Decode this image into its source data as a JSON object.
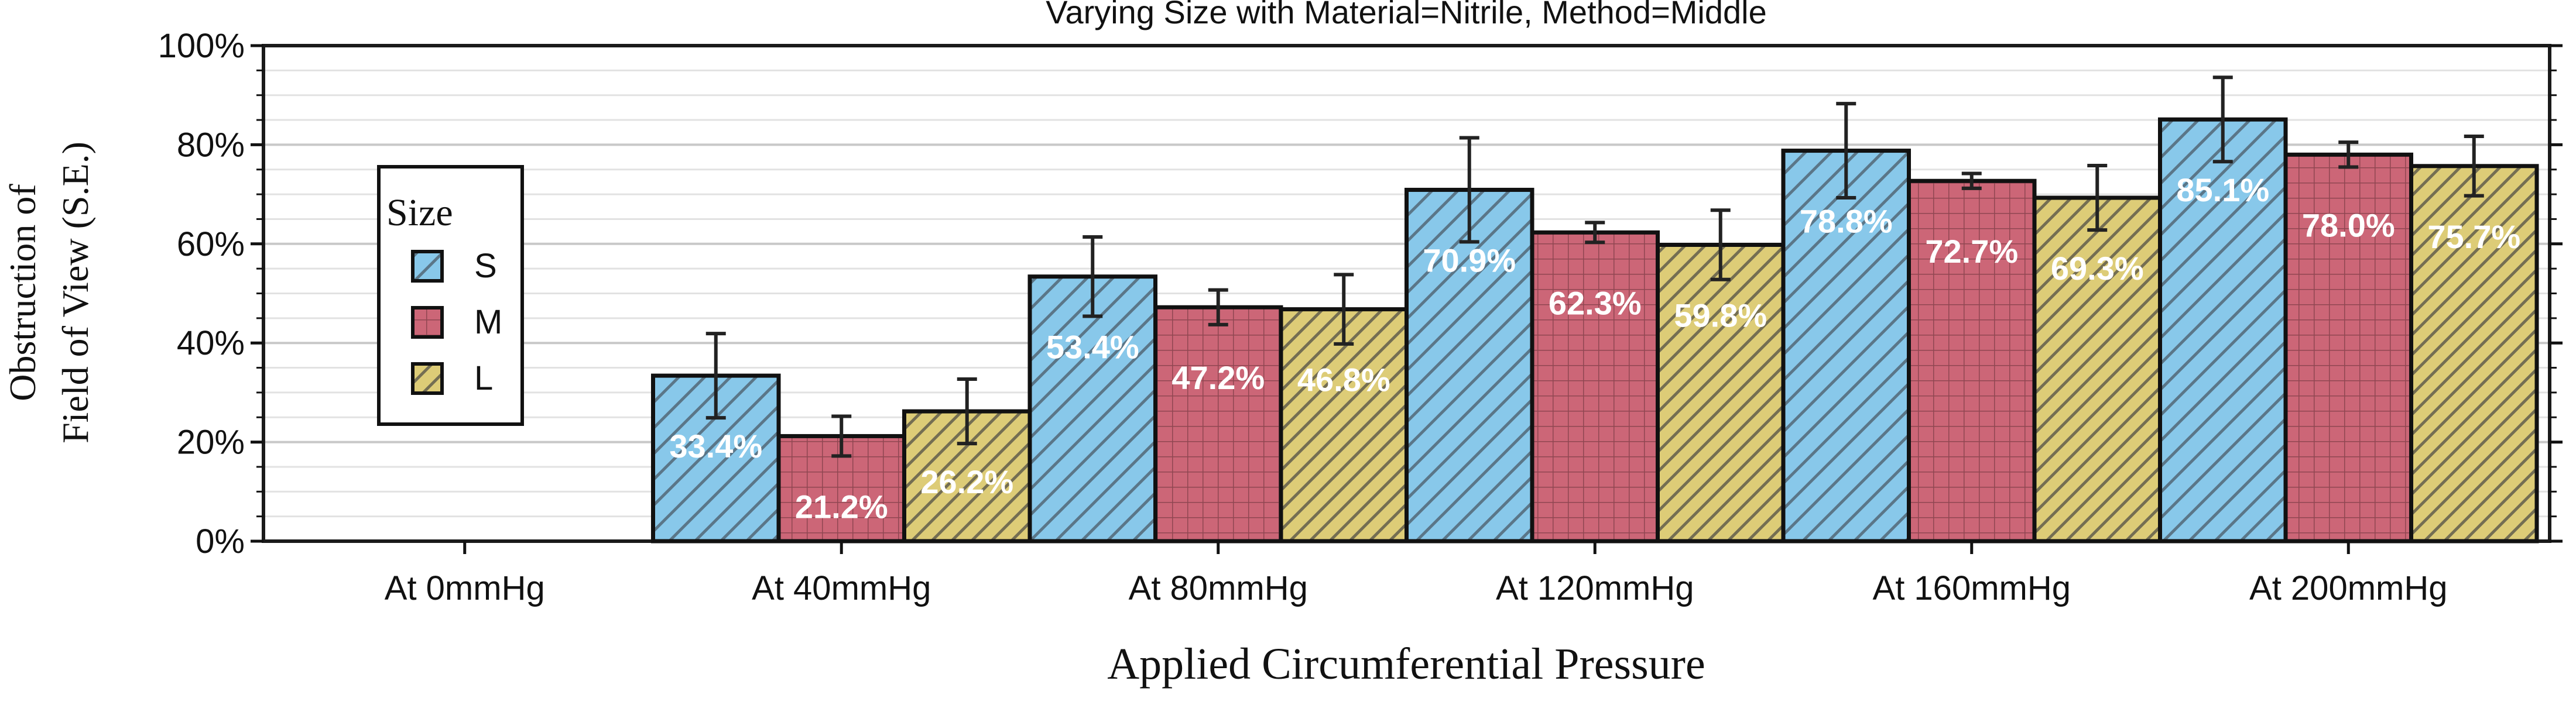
{
  "chart_data": {
    "type": "bar",
    "title": "Varying Size with Material=Nitrile, Method=Middle",
    "xlabel": "Applied Circumferential Pressure",
    "ylabel_lines": [
      "Obstruction of",
      "Field of View (S.E.)"
    ],
    "categories": [
      "At 0mmHg",
      "At 40mmHg",
      "At 80mmHg",
      "At 120mmHg",
      "At 160mmHg",
      "At 200mmHg"
    ],
    "ylim": [
      0,
      100
    ],
    "y_ticks": [
      "0%",
      "20%",
      "40%",
      "60%",
      "80%",
      "100%"
    ],
    "grid": true,
    "legend": {
      "title": "Size",
      "position": "left"
    },
    "series": [
      {
        "name": "S",
        "color": "#88c8ea",
        "hatch": "diagonal",
        "values": [
          0,
          33.4,
          53.4,
          70.9,
          78.8,
          85.1
        ],
        "errors": [
          0,
          8.5,
          8.0,
          10.5,
          9.5,
          8.5
        ],
        "labels": [
          "",
          "33.4%",
          "53.4%",
          "70.9%",
          "78.8%",
          "85.1%"
        ]
      },
      {
        "name": "M",
        "color": "#cc6677",
        "hatch": "grid",
        "values": [
          0,
          21.2,
          47.2,
          62.3,
          72.7,
          78.0
        ],
        "errors": [
          0,
          4.0,
          3.5,
          2.0,
          1.5,
          2.5
        ],
        "labels": [
          "",
          "21.2%",
          "47.2%",
          "62.3%",
          "72.7%",
          "78.0%"
        ]
      },
      {
        "name": "L",
        "color": "#ddcc77",
        "hatch": "diagonal-dense",
        "values": [
          0,
          26.2,
          46.8,
          59.8,
          69.3,
          75.7
        ],
        "errors": [
          0,
          6.5,
          7.0,
          7.0,
          6.5,
          6.0
        ],
        "labels": [
          "",
          "26.2%",
          "46.8%",
          "59.8%",
          "69.3%",
          "75.7%"
        ]
      }
    ]
  }
}
